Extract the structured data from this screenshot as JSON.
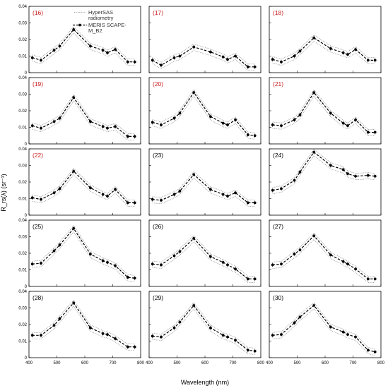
{
  "figure": {
    "ylabel": "R_rs(λ) (sr⁻¹)",
    "xlabel": "Wavelength (nm)",
    "legend": {
      "line1": "HyperSAS",
      "line2": "radiometry",
      "line3": "MERIS SCAPE-",
      "line4": "M_B2"
    },
    "x_ticks": [
      "400",
      "500",
      "600",
      "700",
      "800"
    ],
    "y_ticks": [
      "0",
      "0.01",
      "0.02",
      "0.03",
      "0.04"
    ],
    "colors": {
      "red_label": "#cc2222",
      "black_label": "#000000",
      "meris": "#000000",
      "hypersas": "#8a8a8a"
    }
  },
  "chart_data": [
    {
      "type": "line",
      "panel": "(16)",
      "label_color": "red",
      "xlim": [
        400,
        800
      ],
      "ylim": [
        0,
        0.04
      ],
      "legend": "top-right",
      "series": [
        {
          "name": "MERIS SCAPE-M_B2",
          "x": [
            412,
            443,
            490,
            510,
            560,
            620,
            665,
            681,
            709,
            754,
            779
          ],
          "y": [
            0.009,
            0.0075,
            0.0135,
            0.016,
            0.026,
            0.016,
            0.0135,
            0.012,
            0.014,
            0.0065,
            0.0065
          ]
        }
      ]
    },
    {
      "type": "line",
      "panel": "(17)",
      "label_color": "red",
      "xlim": [
        400,
        800
      ],
      "ylim": [
        0,
        0.04
      ],
      "series": [
        {
          "name": "MERIS SCAPE-M_B2",
          "x": [
            412,
            443,
            490,
            510,
            560,
            620,
            665,
            681,
            709,
            754,
            779
          ],
          "y": [
            0.0075,
            0.0045,
            0.009,
            0.01,
            0.0155,
            0.0125,
            0.0095,
            0.008,
            0.01,
            0.0035,
            0.0035
          ]
        }
      ]
    },
    {
      "type": "line",
      "panel": "(18)",
      "label_color": "red",
      "xlim": [
        400,
        800
      ],
      "ylim": [
        0,
        0.04
      ],
      "series": [
        {
          "name": "MERIS SCAPE-M_B2",
          "x": [
            412,
            443,
            490,
            510,
            560,
            620,
            665,
            681,
            709,
            754,
            779
          ],
          "y": [
            0.008,
            0.0065,
            0.01,
            0.013,
            0.021,
            0.0145,
            0.012,
            0.011,
            0.014,
            0.0075,
            0.0075
          ]
        }
      ]
    },
    {
      "type": "line",
      "panel": "(19)",
      "label_color": "red",
      "xlim": [
        400,
        800
      ],
      "ylim": [
        0,
        0.04
      ],
      "series": [
        {
          "name": "MERIS SCAPE-M_B2",
          "x": [
            412,
            443,
            490,
            510,
            560,
            620,
            665,
            681,
            709,
            754,
            779
          ],
          "y": [
            0.011,
            0.0095,
            0.0135,
            0.0155,
            0.028,
            0.0135,
            0.0105,
            0.0095,
            0.0105,
            0.0045,
            0.0045
          ]
        }
      ]
    },
    {
      "type": "line",
      "panel": "(20)",
      "label_color": "red",
      "xlim": [
        400,
        800
      ],
      "ylim": [
        0,
        0.04
      ],
      "series": [
        {
          "name": "MERIS SCAPE-M_B2",
          "x": [
            412,
            443,
            490,
            510,
            560,
            620,
            665,
            681,
            709,
            754,
            779
          ],
          "y": [
            0.013,
            0.0115,
            0.0155,
            0.0185,
            0.031,
            0.0165,
            0.0125,
            0.0115,
            0.0145,
            0.0055,
            0.005
          ]
        }
      ]
    },
    {
      "type": "line",
      "panel": "(21)",
      "label_color": "red",
      "xlim": [
        400,
        800
      ],
      "ylim": [
        0,
        0.04
      ],
      "series": [
        {
          "name": "MERIS SCAPE-M_B2",
          "x": [
            412,
            443,
            490,
            510,
            560,
            620,
            665,
            681,
            709,
            754,
            779
          ],
          "y": [
            0.0115,
            0.011,
            0.0145,
            0.0175,
            0.031,
            0.0185,
            0.0125,
            0.011,
            0.0145,
            0.007,
            0.007
          ]
        }
      ]
    },
    {
      "type": "line",
      "panel": "(22)",
      "label_color": "red",
      "xlim": [
        400,
        800
      ],
      "ylim": [
        0,
        0.04
      ],
      "series": [
        {
          "name": "MERIS SCAPE-M_B2",
          "x": [
            412,
            443,
            490,
            510,
            560,
            620,
            665,
            681,
            709,
            754,
            779
          ],
          "y": [
            0.0105,
            0.0095,
            0.0135,
            0.016,
            0.0265,
            0.0165,
            0.0125,
            0.0115,
            0.0155,
            0.0075,
            0.0075
          ]
        }
      ]
    },
    {
      "type": "line",
      "panel": "(23)",
      "label_color": "black",
      "xlim": [
        400,
        800
      ],
      "ylim": [
        0,
        0.04
      ],
      "series": [
        {
          "name": "MERIS SCAPE-M_B2",
          "x": [
            412,
            443,
            490,
            510,
            560,
            620,
            665,
            681,
            709,
            754,
            779
          ],
          "y": [
            0.0095,
            0.009,
            0.0125,
            0.0145,
            0.0245,
            0.0155,
            0.0125,
            0.0115,
            0.0135,
            0.0075,
            0.0075
          ]
        }
      ]
    },
    {
      "type": "line",
      "panel": "(24)",
      "label_color": "black",
      "xlim": [
        400,
        800
      ],
      "ylim": [
        0,
        0.04
      ],
      "series": [
        {
          "name": "MERIS SCAPE-M_B2",
          "x": [
            412,
            443,
            490,
            510,
            560,
            620,
            665,
            681,
            709,
            754,
            779
          ],
          "y": [
            0.015,
            0.016,
            0.021,
            0.026,
            0.038,
            0.03,
            0.0275,
            0.025,
            0.0235,
            0.024,
            0.0235
          ]
        }
      ]
    },
    {
      "type": "line",
      "panel": "(25)",
      "label_color": "black",
      "xlim": [
        400,
        800
      ],
      "ylim": [
        0,
        0.04
      ],
      "series": [
        {
          "name": "MERIS SCAPE-M_B2",
          "x": [
            412,
            443,
            490,
            510,
            560,
            620,
            665,
            681,
            709,
            754,
            779
          ],
          "y": [
            0.0135,
            0.014,
            0.0215,
            0.025,
            0.035,
            0.0195,
            0.0155,
            0.0145,
            0.0125,
            0.0055,
            0.005
          ]
        }
      ]
    },
    {
      "type": "line",
      "panel": "(26)",
      "label_color": "black",
      "xlim": [
        400,
        800
      ],
      "ylim": [
        0,
        0.04
      ],
      "series": [
        {
          "name": "MERIS SCAPE-M_B2",
          "x": [
            412,
            443,
            490,
            510,
            560,
            620,
            665,
            681,
            709,
            754,
            779
          ],
          "y": [
            0.0135,
            0.013,
            0.0185,
            0.021,
            0.029,
            0.018,
            0.0145,
            0.013,
            0.0105,
            0.0045,
            0.0045
          ]
        }
      ]
    },
    {
      "type": "line",
      "panel": "(27)",
      "label_color": "black",
      "xlim": [
        400,
        800
      ],
      "ylim": [
        0,
        0.04
      ],
      "series": [
        {
          "name": "MERIS SCAPE-M_B2",
          "x": [
            412,
            443,
            490,
            510,
            560,
            620,
            665,
            681,
            709,
            754,
            779
          ],
          "y": [
            0.013,
            0.0135,
            0.0195,
            0.022,
            0.0305,
            0.019,
            0.015,
            0.0135,
            0.0105,
            0.0045,
            0.0045
          ]
        }
      ]
    },
    {
      "type": "line",
      "panel": "(28)",
      "label_color": "black",
      "xlim": [
        400,
        800
      ],
      "ylim": [
        0,
        0.04
      ],
      "series": [
        {
          "name": "MERIS SCAPE-M_B2",
          "x": [
            412,
            443,
            490,
            510,
            560,
            620,
            665,
            681,
            709,
            754,
            779
          ],
          "y": [
            0.0135,
            0.0135,
            0.0195,
            0.0235,
            0.033,
            0.018,
            0.0145,
            0.014,
            0.0115,
            0.0065,
            0.0065
          ]
        }
      ]
    },
    {
      "type": "line",
      "panel": "(29)",
      "label_color": "black",
      "xlim": [
        400,
        800
      ],
      "ylim": [
        0,
        0.04
      ],
      "series": [
        {
          "name": "MERIS SCAPE-M_B2",
          "x": [
            412,
            443,
            490,
            510,
            560,
            620,
            665,
            681,
            709,
            754,
            779
          ],
          "y": [
            0.013,
            0.0125,
            0.018,
            0.0215,
            0.0315,
            0.018,
            0.0135,
            0.0125,
            0.0105,
            0.0045,
            0.004
          ]
        }
      ]
    },
    {
      "type": "line",
      "panel": "(30)",
      "label_color": "black",
      "xlim": [
        400,
        800
      ],
      "ylim": [
        0,
        0.04
      ],
      "series": [
        {
          "name": "MERIS SCAPE-M_B2",
          "x": [
            412,
            443,
            490,
            510,
            560,
            620,
            665,
            681,
            709,
            754,
            779
          ],
          "y": [
            0.0135,
            0.014,
            0.021,
            0.0245,
            0.0315,
            0.0185,
            0.0155,
            0.014,
            0.0125,
            0.0045,
            0.0035
          ]
        }
      ]
    }
  ]
}
